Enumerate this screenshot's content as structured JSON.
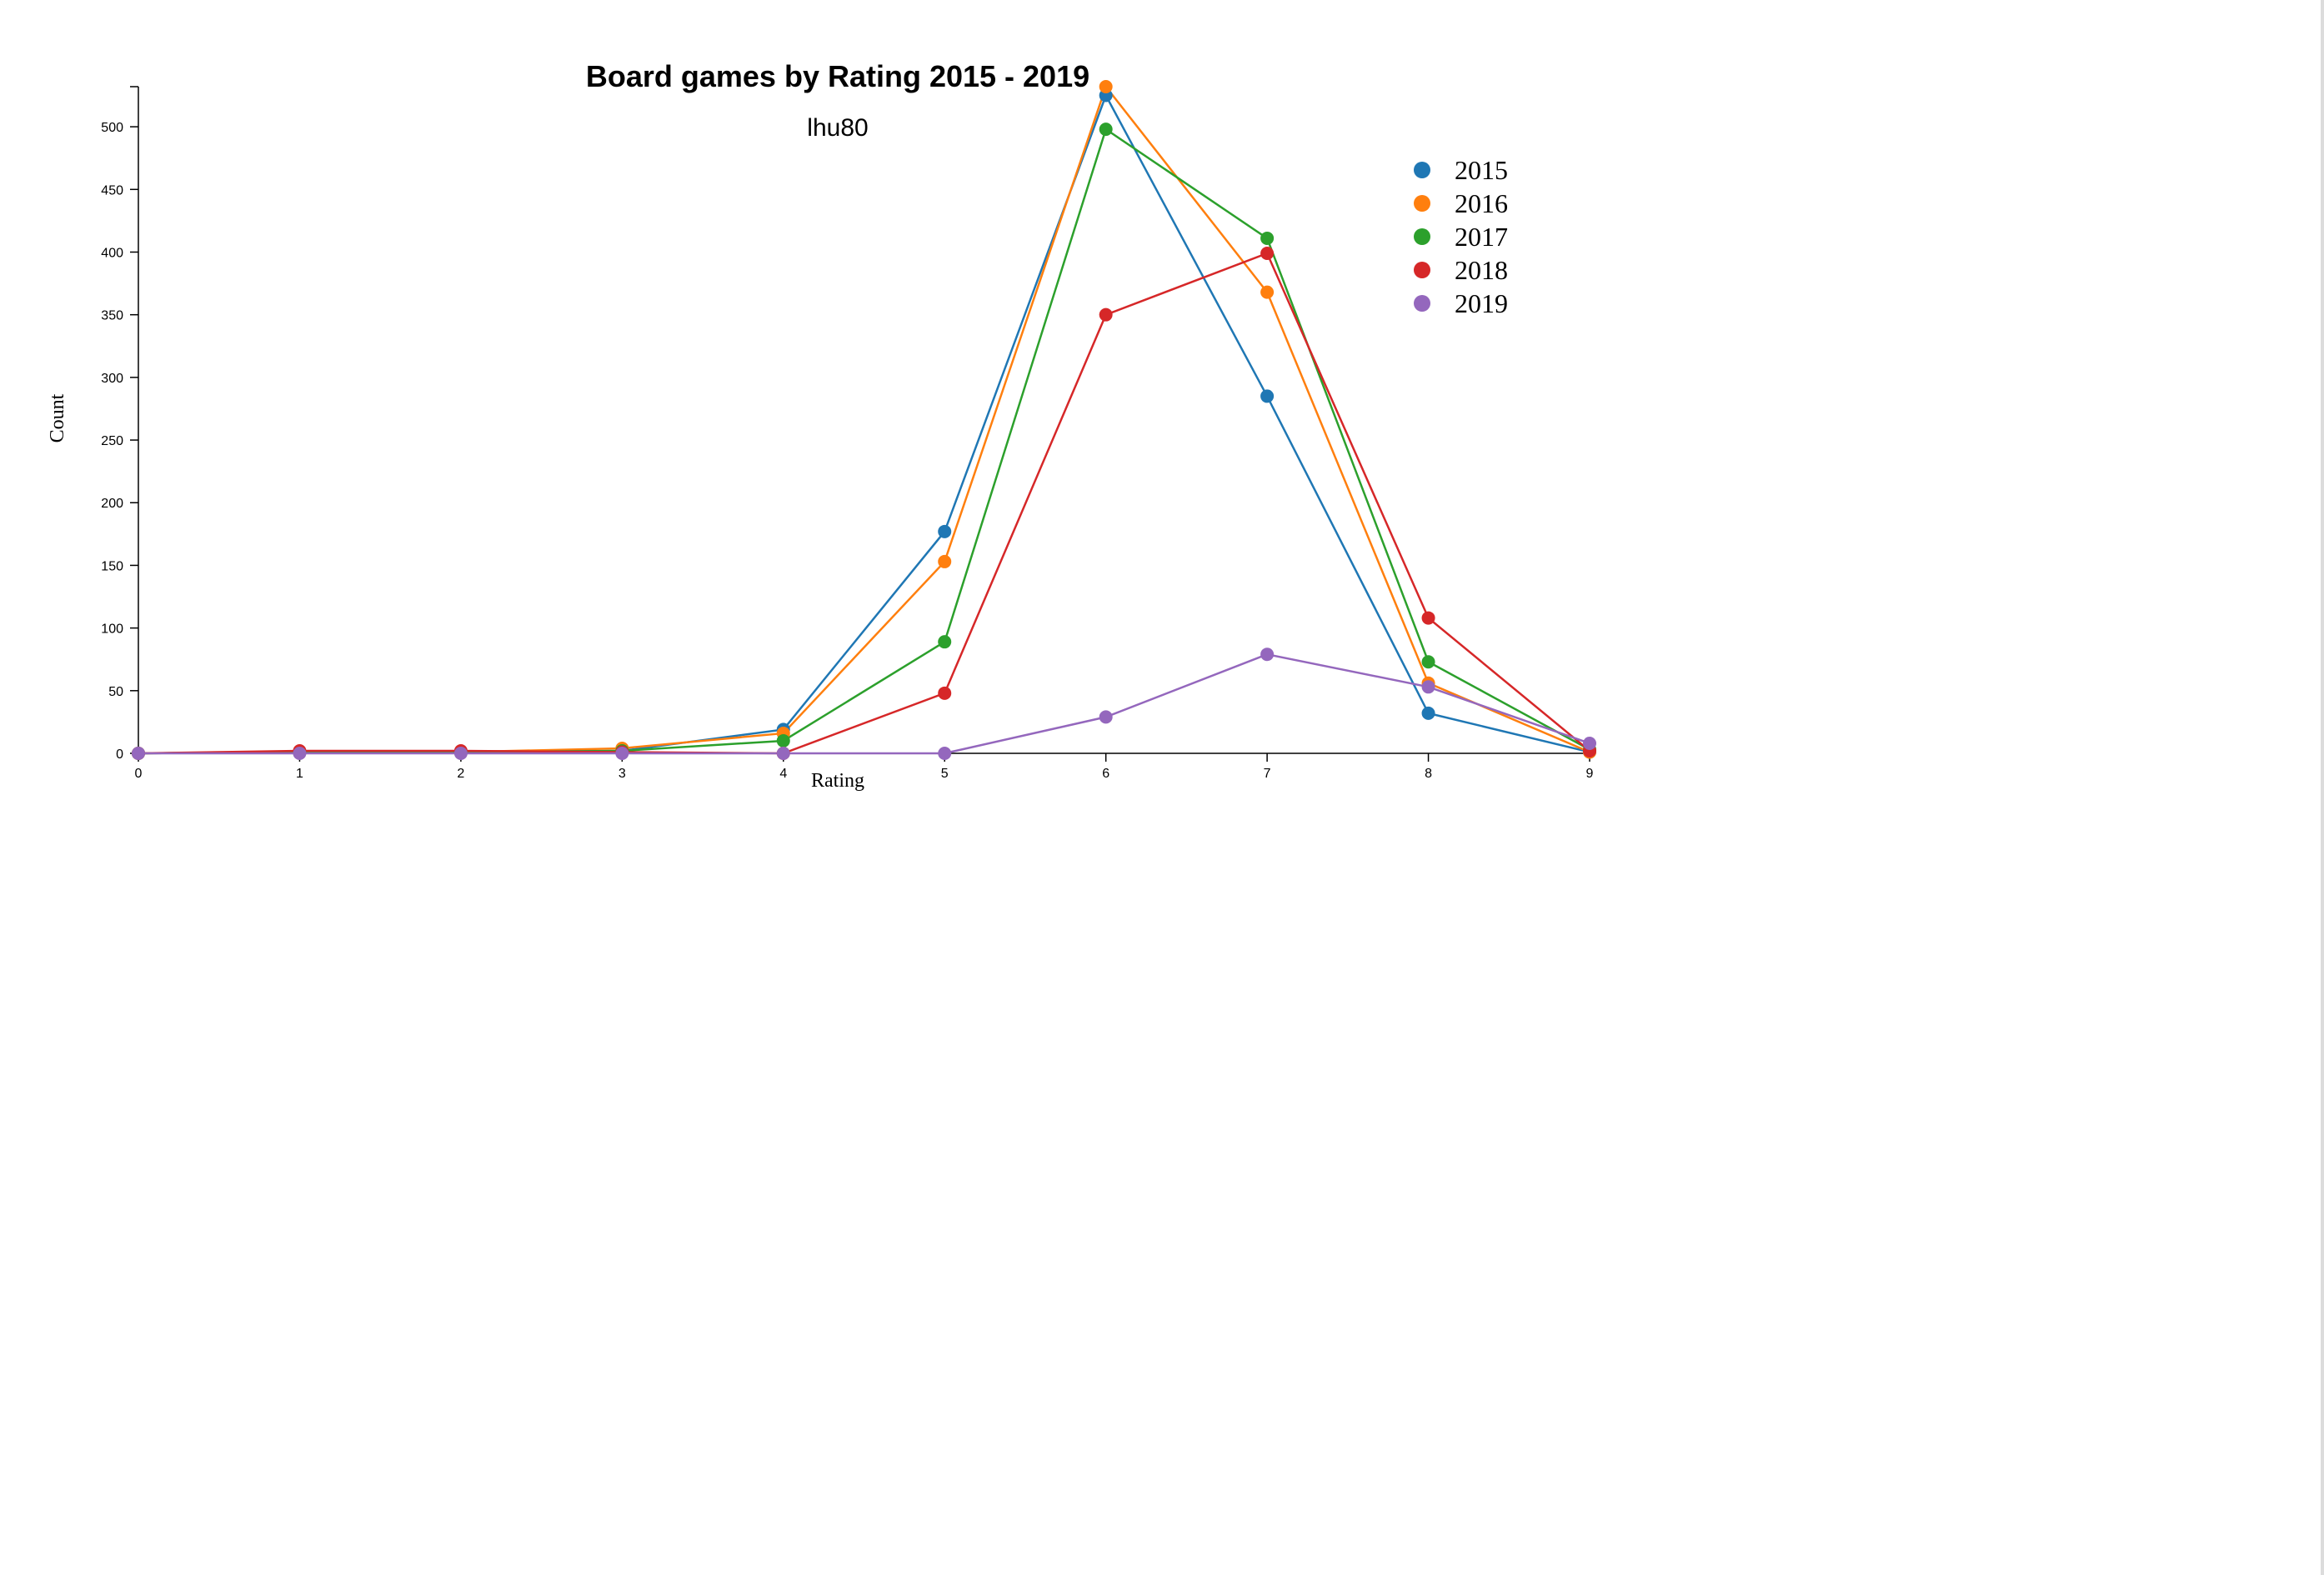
{
  "chart_data": {
    "type": "line",
    "title": "Board games by Rating 2015 - 2019",
    "subtitle": "lhu80",
    "xlabel": "Rating",
    "ylabel": "Count",
    "x": [
      0,
      1,
      2,
      3,
      4,
      5,
      6,
      7,
      8,
      9
    ],
    "x_tick_labels": [
      "0",
      "1",
      "2",
      "3",
      "4",
      "5",
      "6",
      "7",
      "8",
      "9"
    ],
    "y_tick_labels": [
      "0",
      "50",
      "100",
      "150",
      "200",
      "250",
      "300",
      "350",
      "400",
      "450",
      "500"
    ],
    "y_ticks": [
      0,
      50,
      100,
      150,
      200,
      250,
      300,
      350,
      400,
      450,
      500
    ],
    "xlim": [
      0,
      9
    ],
    "ylim": [
      0,
      532
    ],
    "grid": false,
    "legend_position": "top-right",
    "series": [
      {
        "name": "2015",
        "color": "#1f77b4",
        "values": [
          0,
          1,
          1,
          2,
          19,
          177,
          525,
          285,
          32,
          1
        ]
      },
      {
        "name": "2016",
        "color": "#ff7f0e",
        "values": [
          0,
          1,
          1,
          4,
          16,
          153,
          532,
          368,
          56,
          1
        ]
      },
      {
        "name": "2017",
        "color": "#2ca02c",
        "values": [
          0,
          1,
          1,
          2,
          10,
          89,
          498,
          411,
          73,
          3
        ]
      },
      {
        "name": "2018",
        "color": "#d62728",
        "values": [
          0,
          2,
          2,
          1,
          0,
          48,
          350,
          399,
          108,
          2
        ]
      },
      {
        "name": "2019",
        "color": "#9467bd",
        "values": [
          0,
          0,
          0,
          0,
          0,
          0,
          29,
          79,
          53,
          8
        ]
      }
    ]
  }
}
